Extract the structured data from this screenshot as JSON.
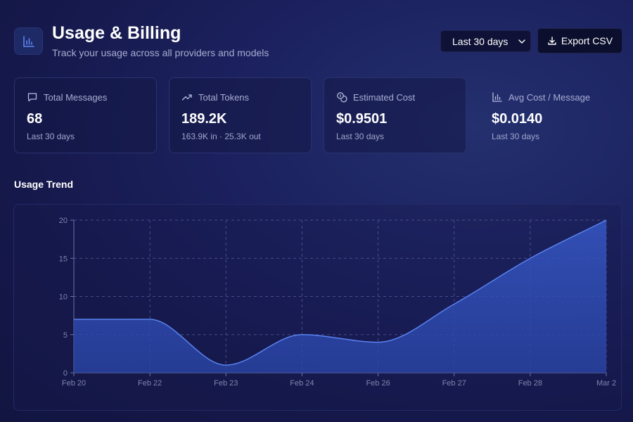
{
  "header": {
    "title": "Usage & Billing",
    "subtitle": "Track your usage across all providers and models",
    "icon": "bar-chart-icon"
  },
  "controls": {
    "range_value": "Last 30 days",
    "export_label": "Export CSV"
  },
  "stats": [
    {
      "label": "Total Messages",
      "value": "68",
      "sub": "Last 30 days",
      "icon": "message-icon"
    },
    {
      "label": "Total Tokens",
      "value": "189.2K",
      "sub": "163.9K in · 25.3K out",
      "icon": "trending-up-icon"
    },
    {
      "label": "Estimated Cost",
      "value": "$0.9501",
      "sub": "Last 30 days",
      "icon": "coins-icon"
    },
    {
      "label": "Avg Cost / Message",
      "value": "$0.0140",
      "sub": "Last 30 days",
      "icon": "bar-chart-icon"
    }
  ],
  "section": {
    "title": "Usage Trend"
  },
  "colors": {
    "accent": "#4a72e8",
    "area": "#2f4fb0",
    "grid": "#5b62a0"
  },
  "chart_data": {
    "type": "area",
    "categories": [
      "Feb 20",
      "Feb 22",
      "Feb 23",
      "Feb 24",
      "Feb 26",
      "Feb 27",
      "Feb 28",
      "Mar 2"
    ],
    "values": [
      7,
      7,
      1,
      5,
      4,
      9,
      15,
      20
    ],
    "ylim": [
      0,
      20
    ],
    "yticks": [
      "0",
      "5",
      "10",
      "15",
      "20"
    ],
    "grid": true
  }
}
